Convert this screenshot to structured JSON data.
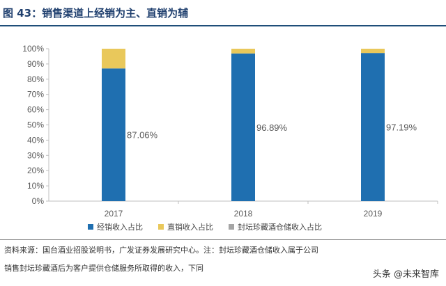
{
  "figure": {
    "title": "图 43：销售渠道上经销为主、直销为辅"
  },
  "chart_data": {
    "type": "bar",
    "stacked": true,
    "categories": [
      "2017",
      "2018",
      "2019"
    ],
    "series": [
      {
        "name": "经销收入占比",
        "values": [
          87.06,
          96.89,
          97.19
        ],
        "color": "#1f6fb0",
        "labels": [
          "87.06%",
          "96.89%",
          "97.19%"
        ]
      },
      {
        "name": "直销收入占比",
        "values": [
          12.94,
          3.11,
          2.81
        ],
        "color": "#e9c85b"
      },
      {
        "name": "封坛珍藏酒仓储收入占比",
        "values": [
          0,
          0,
          0
        ],
        "color": "#a5a5a5"
      }
    ],
    "yticks": [
      "0%",
      "10%",
      "20%",
      "30%",
      "40%",
      "50%",
      "60%",
      "70%",
      "80%",
      "90%",
      "100%"
    ],
    "ylim": [
      0,
      100
    ],
    "grid": false,
    "legend": "bottom"
  },
  "source": {
    "line1": "资料来源：国台酒业招股说明书，广发证券发展研究中心。注：封坛珍藏酒仓储收入属于公司",
    "line2": "销售封坛珍藏酒后为客户提供仓储服务所取得的收入，下同"
  },
  "watermark": "头条 @未来智库"
}
